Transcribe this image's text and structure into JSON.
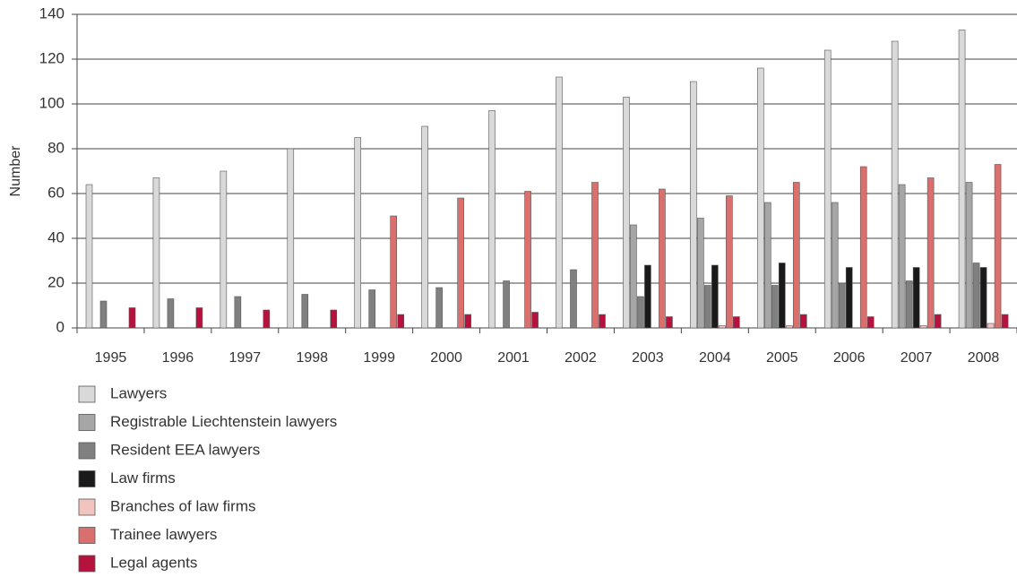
{
  "chart_data": {
    "type": "bar",
    "y_label": "Number",
    "categories": [
      "1995",
      "1996",
      "1997",
      "1998",
      "1999",
      "2000",
      "2001",
      "2002",
      "2003",
      "2004",
      "2005",
      "2006",
      "2007",
      "2008"
    ],
    "series": [
      {
        "name": "Lawyers",
        "color": "#d9d9d9",
        "values": [
          64,
          67,
          70,
          80,
          85,
          90,
          97,
          112,
          103,
          110,
          116,
          124,
          128,
          133
        ]
      },
      {
        "name": "Registrable Liechtenstein lawyers",
        "color": "#a6a6a6",
        "values": [
          null,
          null,
          null,
          null,
          null,
          null,
          null,
          null,
          46,
          49,
          56,
          56,
          64,
          65
        ]
      },
      {
        "name": "Resident EEA lawyers",
        "color": "#808080",
        "values": [
          12,
          13,
          14,
          15,
          17,
          18,
          21,
          26,
          14,
          19,
          19,
          20,
          21,
          29
        ]
      },
      {
        "name": "Law firms",
        "color": "#1a1a1a",
        "values": [
          null,
          null,
          null,
          null,
          null,
          null,
          null,
          null,
          28,
          28,
          29,
          27,
          27,
          27
        ]
      },
      {
        "name": "Branches of law firms",
        "color": "#f2c4c0",
        "values": [
          null,
          null,
          null,
          null,
          null,
          null,
          null,
          null,
          null,
          1,
          1,
          null,
          1,
          2
        ]
      },
      {
        "name": "Trainee lawyers",
        "color": "#d9706d",
        "values": [
          null,
          null,
          null,
          null,
          50,
          58,
          61,
          65,
          62,
          59,
          65,
          72,
          67,
          73
        ]
      },
      {
        "name": "Legal agents",
        "color": "#b5123d",
        "values": [
          9,
          9,
          8,
          8,
          6,
          6,
          7,
          6,
          5,
          5,
          6,
          5,
          6,
          6
        ]
      }
    ],
    "ylim": [
      0,
      140
    ],
    "yticks": [
      0,
      20,
      40,
      60,
      80,
      100,
      120,
      140
    ],
    "grid": true
  }
}
